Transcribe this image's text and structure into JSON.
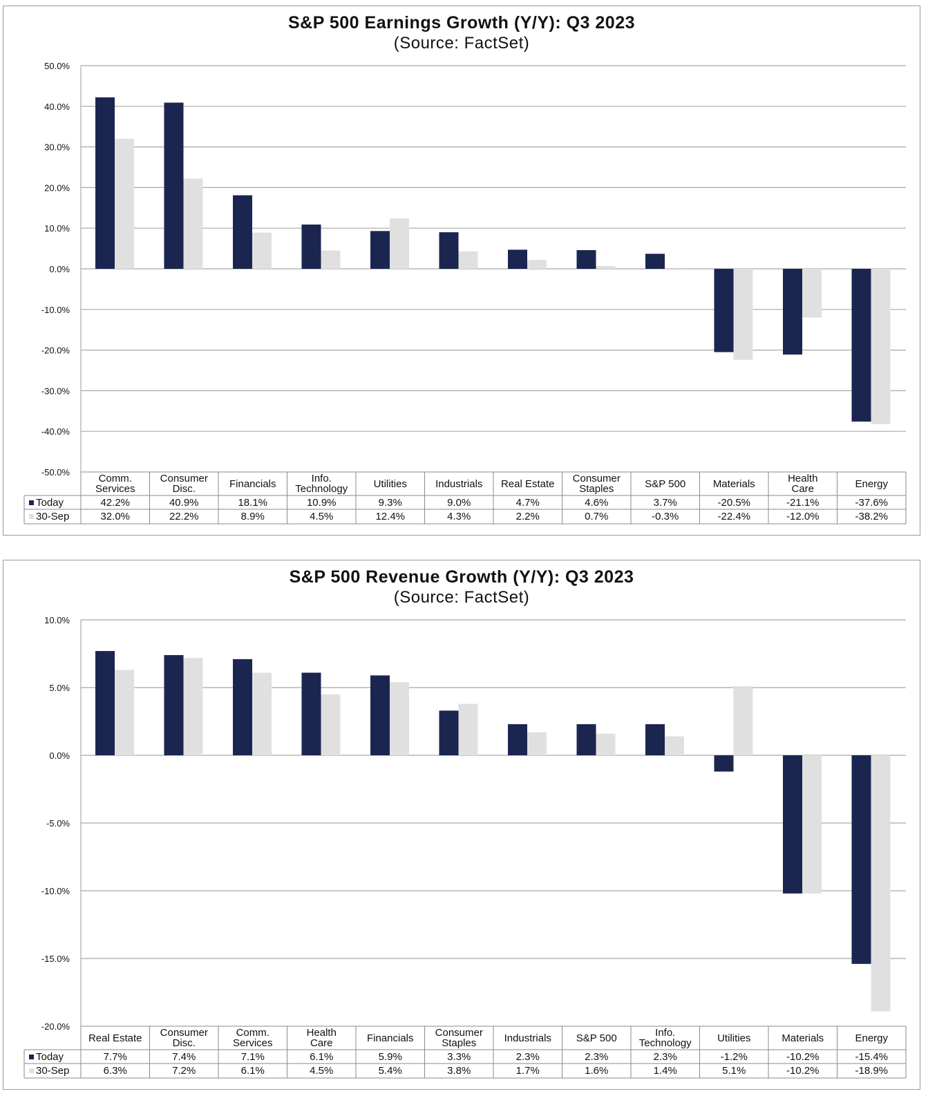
{
  "chart_data": [
    {
      "type": "bar",
      "title": "S&P 500 Earnings Growth (Y/Y): Q3 2023",
      "subtitle": "(Source: FactSet)",
      "ylim": [
        -50,
        50
      ],
      "yticks": [
        "50.0%",
        "40.0%",
        "30.0%",
        "20.0%",
        "10.0%",
        "0.0%",
        "-10.0%",
        "-20.0%",
        "-30.0%",
        "-40.0%",
        "-50.0%"
      ],
      "grid": true,
      "categories": [
        [
          "Comm.",
          "Services"
        ],
        [
          "Consumer",
          "Disc."
        ],
        [
          "Financials"
        ],
        [
          "Info.",
          "Technology"
        ],
        [
          "Utilities"
        ],
        [
          "Industrials"
        ],
        [
          "Real Estate"
        ],
        [
          "Consumer",
          "Staples"
        ],
        [
          "S&P 500"
        ],
        [
          "Materials"
        ],
        [
          "Health",
          "Care"
        ],
        [
          "Energy"
        ]
      ],
      "series": [
        {
          "name": "Today",
          "color": "#1b2650",
          "values": [
            42.2,
            40.9,
            18.1,
            10.9,
            9.3,
            9.0,
            4.7,
            4.6,
            3.7,
            -20.5,
            -21.1,
            -37.6
          ],
          "labels": [
            "42.2%",
            "40.9%",
            "18.1%",
            "10.9%",
            "9.3%",
            "9.0%",
            "4.7%",
            "4.6%",
            "3.7%",
            "-20.5%",
            "-21.1%",
            "-37.6%"
          ]
        },
        {
          "name": "30-Sep",
          "color": "#e0e0e0",
          "values": [
            32.0,
            22.2,
            8.9,
            4.5,
            12.4,
            4.3,
            2.2,
            0.7,
            -0.3,
            -22.4,
            -12.0,
            -38.2
          ],
          "labels": [
            "32.0%",
            "22.2%",
            "8.9%",
            "4.5%",
            "12.4%",
            "4.3%",
            "2.2%",
            "0.7%",
            "-0.3%",
            "-22.4%",
            "-12.0%",
            "-38.2%"
          ]
        }
      ]
    },
    {
      "type": "bar",
      "title": "S&P 500 Revenue Growth (Y/Y): Q3 2023",
      "subtitle": "(Source: FactSet)",
      "ylim": [
        -20,
        10
      ],
      "yticks": [
        "10.0%",
        "5.0%",
        "0.0%",
        "-5.0%",
        "-10.0%",
        "-15.0%",
        "-20.0%"
      ],
      "grid": true,
      "categories": [
        [
          "Real Estate"
        ],
        [
          "Consumer",
          "Disc."
        ],
        [
          "Comm.",
          "Services"
        ],
        [
          "Health",
          "Care"
        ],
        [
          "Financials"
        ],
        [
          "Consumer",
          "Staples"
        ],
        [
          "Industrials"
        ],
        [
          "S&P 500"
        ],
        [
          "Info.",
          "Technology"
        ],
        [
          "Utilities"
        ],
        [
          "Materials"
        ],
        [
          "Energy"
        ]
      ],
      "series": [
        {
          "name": "Today",
          "color": "#1b2650",
          "values": [
            7.7,
            7.4,
            7.1,
            6.1,
            5.9,
            3.3,
            2.3,
            2.3,
            2.3,
            -1.2,
            -10.2,
            -15.4
          ],
          "labels": [
            "7.7%",
            "7.4%",
            "7.1%",
            "6.1%",
            "5.9%",
            "3.3%",
            "2.3%",
            "2.3%",
            "2.3%",
            "-1.2%",
            "-10.2%",
            "-15.4%"
          ]
        },
        {
          "name": "30-Sep",
          "color": "#e0e0e0",
          "values": [
            6.3,
            7.2,
            6.1,
            4.5,
            5.4,
            3.8,
            1.7,
            1.6,
            1.4,
            5.1,
            -10.2,
            -18.9
          ],
          "labels": [
            "6.3%",
            "7.2%",
            "6.1%",
            "4.5%",
            "5.4%",
            "3.8%",
            "1.7%",
            "1.6%",
            "1.4%",
            "5.1%",
            "-10.2%",
            "-18.9%"
          ]
        }
      ]
    }
  ]
}
